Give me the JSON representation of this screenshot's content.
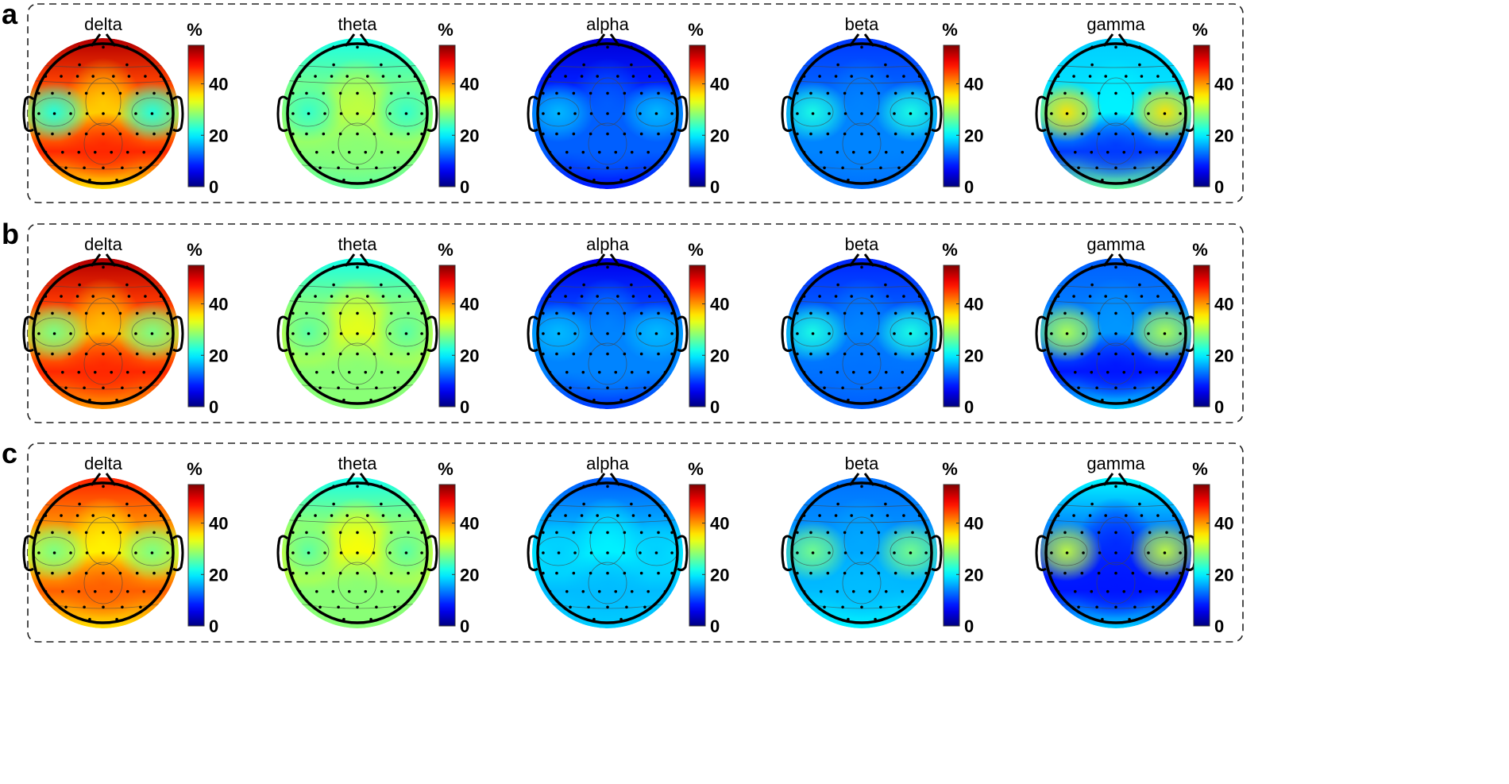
{
  "chart_data": {
    "type": "heatmap",
    "subtype": "eeg-topographic-map",
    "colorbar": {
      "label": "%",
      "ticks": [
        0,
        20,
        40
      ],
      "range": [
        0,
        55
      ],
      "colormap": "jet"
    },
    "panels": [
      {
        "label": "a",
        "maps": [
          {
            "band": "delta",
            "frontal": 52,
            "center": 37,
            "temporal_left": 22,
            "temporal_right": 22,
            "parietal": 46,
            "occipital": 36
          },
          {
            "band": "theta",
            "frontal": 22,
            "center": 31,
            "temporal_left": 23,
            "temporal_right": 23,
            "parietal": 28,
            "occipital": 26
          },
          {
            "band": "alpha",
            "frontal": 5,
            "center": 12,
            "temporal_left": 17,
            "temporal_right": 17,
            "parietal": 12,
            "occipital": 8
          },
          {
            "band": "beta",
            "frontal": 10,
            "center": 14,
            "temporal_left": 22,
            "temporal_right": 22,
            "parietal": 14,
            "occipital": 13
          },
          {
            "band": "gamma",
            "frontal": 18,
            "center": 20,
            "temporal_left": 36,
            "temporal_right": 36,
            "parietal": 10,
            "occipital": 26
          }
        ]
      },
      {
        "label": "b",
        "maps": [
          {
            "band": "delta",
            "frontal": 52,
            "center": 38,
            "temporal_left": 27,
            "temporal_right": 27,
            "parietal": 46,
            "occipital": 40
          },
          {
            "band": "theta",
            "frontal": 22,
            "center": 33,
            "temporal_left": 25,
            "temporal_right": 25,
            "parietal": 28,
            "occipital": 28
          },
          {
            "band": "alpha",
            "frontal": 6,
            "center": 14,
            "temporal_left": 17,
            "temporal_right": 17,
            "parietal": 14,
            "occipital": 10
          },
          {
            "band": "beta",
            "frontal": 9,
            "center": 14,
            "temporal_left": 22,
            "temporal_right": 22,
            "parietal": 13,
            "occipital": 12
          },
          {
            "band": "gamma",
            "frontal": 12,
            "center": 15,
            "temporal_left": 30,
            "temporal_right": 30,
            "parietal": 8,
            "occipital": 18
          }
        ]
      },
      {
        "label": "c",
        "maps": [
          {
            "band": "delta",
            "frontal": 46,
            "center": 35,
            "temporal_left": 27,
            "temporal_right": 27,
            "parietal": 43,
            "occipital": 36
          },
          {
            "band": "theta",
            "frontal": 22,
            "center": 34,
            "temporal_left": 25,
            "temporal_right": 25,
            "parietal": 28,
            "occipital": 28
          },
          {
            "band": "alpha",
            "frontal": 12,
            "center": 20,
            "temporal_left": 18,
            "temporal_right": 18,
            "parietal": 17,
            "occipital": 18
          },
          {
            "band": "beta",
            "frontal": 13,
            "center": 16,
            "temporal_left": 27,
            "temporal_right": 27,
            "parietal": 17,
            "occipital": 20
          },
          {
            "band": "gamma",
            "frontal": 20,
            "center": 9,
            "temporal_left": 31,
            "temporal_right": 31,
            "parietal": 8,
            "occipital": 18
          }
        ]
      }
    ]
  }
}
